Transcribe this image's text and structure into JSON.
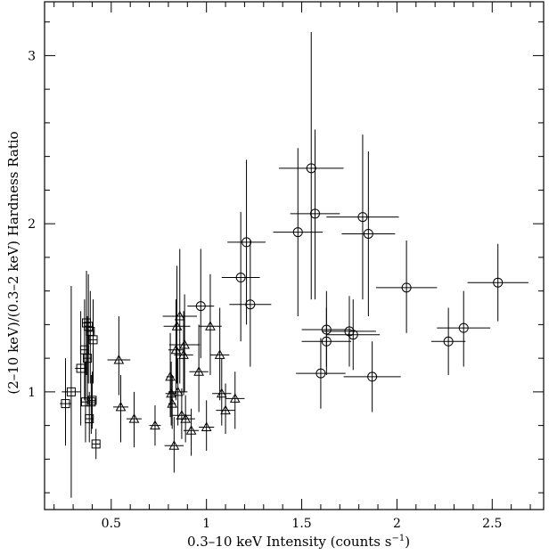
{
  "chart_data": {
    "type": "scatter",
    "title": "",
    "xlabel": "0.3–10 keV Intensity (counts s",
    "xlabel_sup": "−1",
    "xlabel_tail": ")",
    "ylabel": "(2–10 keV)/(0.3–2 keV) Hardness Ratio",
    "xlim": [
      0.15,
      2.77
    ],
    "ylim": [
      0.3,
      3.32
    ],
    "xticks": [
      0.5,
      1,
      1.5,
      2,
      2.5
    ],
    "xtick_labels": [
      "0.5",
      "1",
      "1.5",
      "2",
      "2.5"
    ],
    "yticks": [
      1,
      2,
      3
    ],
    "ytick_labels": [
      "1",
      "2",
      "3"
    ],
    "grid": false,
    "series": [
      {
        "marker": "square",
        "points": [
          {
            "x": 0.26,
            "y": 0.93,
            "xerr": 0.03,
            "ylo": 0.68,
            "yhi": 1.2
          },
          {
            "x": 0.29,
            "y": 1.0,
            "xerr": 0.05,
            "ylo": 0.37,
            "yhi": 1.63
          },
          {
            "x": 0.34,
            "y": 1.14,
            "xerr": 0.03,
            "ylo": 0.8,
            "yhi": 1.48
          },
          {
            "x": 0.36,
            "y": 1.25,
            "xerr": 0.02,
            "ylo": 0.95,
            "yhi": 1.55
          },
          {
            "x": 0.365,
            "y": 0.94,
            "xerr": 0.02,
            "ylo": 0.7,
            "yhi": 1.18
          },
          {
            "x": 0.37,
            "y": 1.41,
            "xerr": 0.02,
            "ylo": 1.1,
            "yhi": 1.72
          },
          {
            "x": 0.375,
            "y": 1.2,
            "xerr": 0.02,
            "ylo": 0.95,
            "yhi": 1.45
          },
          {
            "x": 0.38,
            "y": 1.39,
            "xerr": 0.02,
            "ylo": 1.05,
            "yhi": 1.7
          },
          {
            "x": 0.385,
            "y": 0.84,
            "xerr": 0.02,
            "ylo": 0.7,
            "yhi": 1.0
          },
          {
            "x": 0.39,
            "y": 1.36,
            "xerr": 0.02,
            "ylo": 1.05,
            "yhi": 1.6
          },
          {
            "x": 0.395,
            "y": 0.94,
            "xerr": 0.02,
            "ylo": 0.75,
            "yhi": 1.1
          },
          {
            "x": 0.4,
            "y": 0.95,
            "xerr": 0.02,
            "ylo": 0.78,
            "yhi": 1.12
          },
          {
            "x": 0.405,
            "y": 1.31,
            "xerr": 0.02,
            "ylo": 1.05,
            "yhi": 1.55
          },
          {
            "x": 0.42,
            "y": 0.69,
            "xerr": 0.02,
            "ylo": 0.6,
            "yhi": 0.78
          }
        ]
      },
      {
        "marker": "triangle",
        "points": [
          {
            "x": 0.54,
            "y": 1.19,
            "xerr": 0.06,
            "ylo": 0.98,
            "yhi": 1.45
          },
          {
            "x": 0.55,
            "y": 0.91,
            "xerr": 0.04,
            "ylo": 0.7,
            "yhi": 1.1
          },
          {
            "x": 0.62,
            "y": 0.84,
            "xerr": 0.04,
            "ylo": 0.67,
            "yhi": 1.0
          },
          {
            "x": 0.73,
            "y": 0.8,
            "xerr": 0.03,
            "ylo": 0.68,
            "yhi": 0.92
          },
          {
            "x": 0.81,
            "y": 1.09,
            "xerr": 0.02,
            "ylo": 0.85,
            "yhi": 1.35
          },
          {
            "x": 0.815,
            "y": 0.99,
            "xerr": 0.03,
            "ylo": 0.8,
            "yhi": 1.18
          },
          {
            "x": 0.82,
            "y": 0.93,
            "xerr": 0.02,
            "ylo": 0.78,
            "yhi": 1.1
          },
          {
            "x": 0.83,
            "y": 0.68,
            "xerr": 0.05,
            "ylo": 0.52,
            "yhi": 0.85
          },
          {
            "x": 0.84,
            "y": 1.25,
            "xerr": 0.04,
            "ylo": 0.95,
            "yhi": 1.55
          },
          {
            "x": 0.845,
            "y": 1.39,
            "xerr": 0.07,
            "ylo": 1.05,
            "yhi": 1.75
          },
          {
            "x": 0.85,
            "y": 1.0,
            "xerr": 0.05,
            "ylo": 0.8,
            "yhi": 1.2
          },
          {
            "x": 0.86,
            "y": 1.45,
            "xerr": 0.09,
            "ylo": 1.05,
            "yhi": 1.85
          },
          {
            "x": 0.87,
            "y": 0.86,
            "xerr": 0.05,
            "ylo": 0.72,
            "yhi": 1.02
          },
          {
            "x": 0.88,
            "y": 1.22,
            "xerr": 0.05,
            "ylo": 0.98,
            "yhi": 1.48
          },
          {
            "x": 0.885,
            "y": 1.28,
            "xerr": 0.08,
            "ylo": 1.0,
            "yhi": 1.58
          },
          {
            "x": 0.89,
            "y": 0.84,
            "xerr": 0.05,
            "ylo": 0.7,
            "yhi": 0.98
          },
          {
            "x": 0.92,
            "y": 0.77,
            "xerr": 0.04,
            "ylo": 0.62,
            "yhi": 0.9
          },
          {
            "x": 0.96,
            "y": 1.12,
            "xerr": 0.05,
            "ylo": 0.88,
            "yhi": 1.4
          },
          {
            "x": 1.0,
            "y": 0.79,
            "xerr": 0.04,
            "ylo": 0.65,
            "yhi": 0.95
          },
          {
            "x": 1.02,
            "y": 1.39,
            "xerr": 0.06,
            "ylo": 1.1,
            "yhi": 1.7
          },
          {
            "x": 1.07,
            "y": 1.22,
            "xerr": 0.05,
            "ylo": 0.95,
            "yhi": 1.5
          },
          {
            "x": 1.08,
            "y": 0.99,
            "xerr": 0.05,
            "ylo": 0.8,
            "yhi": 1.2
          },
          {
            "x": 1.1,
            "y": 0.89,
            "xerr": 0.05,
            "ylo": 0.75,
            "yhi": 1.05
          },
          {
            "x": 1.15,
            "y": 0.96,
            "xerr": 0.05,
            "ylo": 0.78,
            "yhi": 1.12
          }
        ]
      },
      {
        "marker": "circle",
        "points": [
          {
            "x": 0.97,
            "y": 1.51,
            "xerr": 0.07,
            "ylo": 1.2,
            "yhi": 1.85
          },
          {
            "x": 1.18,
            "y": 1.68,
            "xerr": 0.1,
            "ylo": 1.3,
            "yhi": 2.07
          },
          {
            "x": 1.21,
            "y": 1.89,
            "xerr": 0.1,
            "ylo": 1.4,
            "yhi": 2.38
          },
          {
            "x": 1.23,
            "y": 1.52,
            "xerr": 0.11,
            "ylo": 1.15,
            "yhi": 1.9
          },
          {
            "x": 1.48,
            "y": 1.95,
            "xerr": 0.13,
            "ylo": 1.45,
            "yhi": 2.45
          },
          {
            "x": 1.55,
            "y": 2.33,
            "xerr": 0.17,
            "ylo": 1.55,
            "yhi": 3.14
          },
          {
            "x": 1.57,
            "y": 2.06,
            "xerr": 0.13,
            "ylo": 1.55,
            "yhi": 2.56
          },
          {
            "x": 1.6,
            "y": 1.11,
            "xerr": 0.13,
            "ylo": 0.9,
            "yhi": 1.32
          },
          {
            "x": 1.63,
            "y": 1.37,
            "xerr": 0.13,
            "ylo": 1.15,
            "yhi": 1.6
          },
          {
            "x": 1.63,
            "y": 1.3,
            "xerr": 0.13,
            "ylo": 1.1,
            "yhi": 1.5
          },
          {
            "x": 1.75,
            "y": 1.36,
            "xerr": 0.14,
            "ylo": 1.15,
            "yhi": 1.57
          },
          {
            "x": 1.77,
            "y": 1.34,
            "xerr": 0.14,
            "ylo": 1.13,
            "yhi": 1.55
          },
          {
            "x": 1.82,
            "y": 2.04,
            "xerr": 0.19,
            "ylo": 1.55,
            "yhi": 2.53
          },
          {
            "x": 1.85,
            "y": 1.94,
            "xerr": 0.14,
            "ylo": 1.45,
            "yhi": 2.43
          },
          {
            "x": 1.87,
            "y": 1.09,
            "xerr": 0.15,
            "ylo": 0.88,
            "yhi": 1.3
          },
          {
            "x": 2.05,
            "y": 1.62,
            "xerr": 0.16,
            "ylo": 1.35,
            "yhi": 1.9
          },
          {
            "x": 2.27,
            "y": 1.3,
            "xerr": 0.09,
            "ylo": 1.1,
            "yhi": 1.5
          },
          {
            "x": 2.35,
            "y": 1.38,
            "xerr": 0.14,
            "ylo": 1.15,
            "yhi": 1.6
          },
          {
            "x": 2.53,
            "y": 1.65,
            "xerr": 0.16,
            "ylo": 1.42,
            "yhi": 1.88
          }
        ]
      }
    ]
  }
}
